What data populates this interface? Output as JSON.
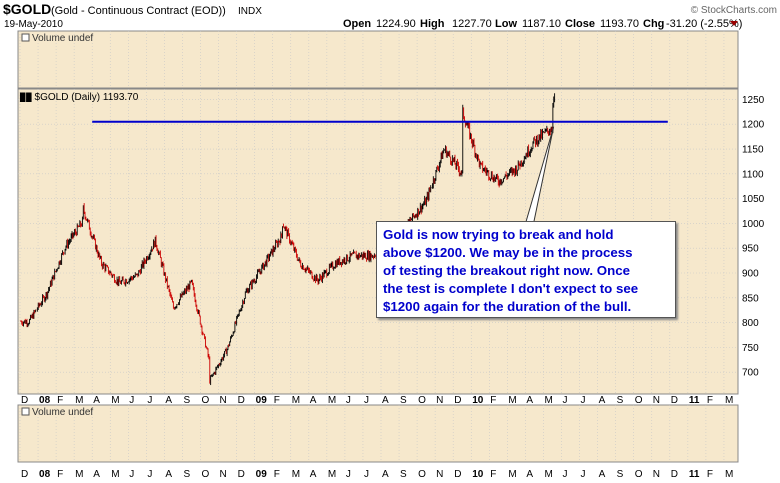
{
  "header": {
    "symbol": "$GOLD",
    "description": "(Gold - Continuous Contract (EOD))",
    "exchange": "INDX",
    "date": "19-May-2010",
    "ohlc": {
      "open_label": "Open",
      "open": "1224.90",
      "high_label": "High",
      "high": "1227.70",
      "low_label": "Low",
      "low": "1187.10",
      "close_label": "Close",
      "close": "1193.70",
      "chg_label": "Chg",
      "chg": "-31.20 (-2.55%)"
    },
    "watermark": "© StockCharts.com"
  },
  "top_panel": {
    "label": "Volume undef"
  },
  "main_panel": {
    "label": "$GOLD (Daily) 1193.70"
  },
  "bottom_panel": {
    "label": "Volume undef"
  },
  "annotation": {
    "lines": [
      "Gold is now trying to break and hold",
      "above $1200. We may be in the process",
      "of testing the breakout right now. Once",
      "the test is complete I don't expect to see",
      "$1200 again for the duration of the bull."
    ]
  },
  "colors": {
    "panel_bg": "#f6e8cc",
    "grid": "#c8c8c8",
    "up": "#000000",
    "down": "#cc0000",
    "resistance": "#0000cc",
    "annotation_text": "#0000cc",
    "chg_marker": "#990000"
  },
  "chart_data": {
    "type": "line",
    "ylim": [
      660,
      1265
    ],
    "yticks": [
      700,
      750,
      800,
      850,
      900,
      950,
      1000,
      1050,
      1100,
      1150,
      1200,
      1250
    ],
    "x_axis_labels": [
      "D",
      "08",
      "F",
      "M",
      "A",
      "M",
      "J",
      "J",
      "A",
      "S",
      "O",
      "N",
      "D",
      "09",
      "F",
      "M",
      "A",
      "M",
      "J",
      "J",
      "A",
      "S",
      "O",
      "N",
      "D",
      "10",
      "F",
      "M",
      "A",
      "M",
      "J",
      "J",
      "A",
      "S",
      "O",
      "N",
      "D",
      "11",
      "F",
      "M"
    ],
    "resistance": {
      "value": 1205,
      "from": "Apr 2008",
      "to": "Dec 2010"
    },
    "series": [
      {
        "months": [
          "Dec 2007",
          "Jan 2008",
          "Feb 2008",
          "Mar 2008",
          "Apr 2008",
          "May 2008",
          "Jun 2008",
          "Jul 2008",
          "Aug 2008",
          "Sep 2008",
          "Oct 2008",
          "Nov 2008",
          "Dec 2008",
          "Jan 2009",
          "Feb 2009",
          "Mar 2009",
          "Apr 2009",
          "May 2009",
          "Jun 2009",
          "Jul 2009",
          "Aug 2009",
          "Sep 2009",
          "Oct 2009",
          "Nov 2009",
          "Dec 2009",
          "Jan 2010",
          "Feb 2010",
          "Mar 2010",
          "Apr 2010",
          "May 2010"
        ],
        "values": [
          802,
          860,
          952,
          1005,
          920,
          880,
          895,
          965,
          830,
          880,
          720,
          748,
          860,
          915,
          975,
          920,
          885,
          920,
          935,
          935,
          950,
          1000,
          1045,
          1150,
          1100,
          1115,
          1085,
          1110,
          1165,
          1194
        ],
        "extremes": [
          {
            "month": "Mar 2008",
            "value": 1030
          },
          {
            "month": "Oct 2008",
            "value": 682
          },
          {
            "month": "Feb 2009",
            "value": 1005
          },
          {
            "month": "Dec 2009",
            "value": 1227
          },
          {
            "month": "May 2010",
            "value": 1249
          }
        ]
      }
    ]
  }
}
